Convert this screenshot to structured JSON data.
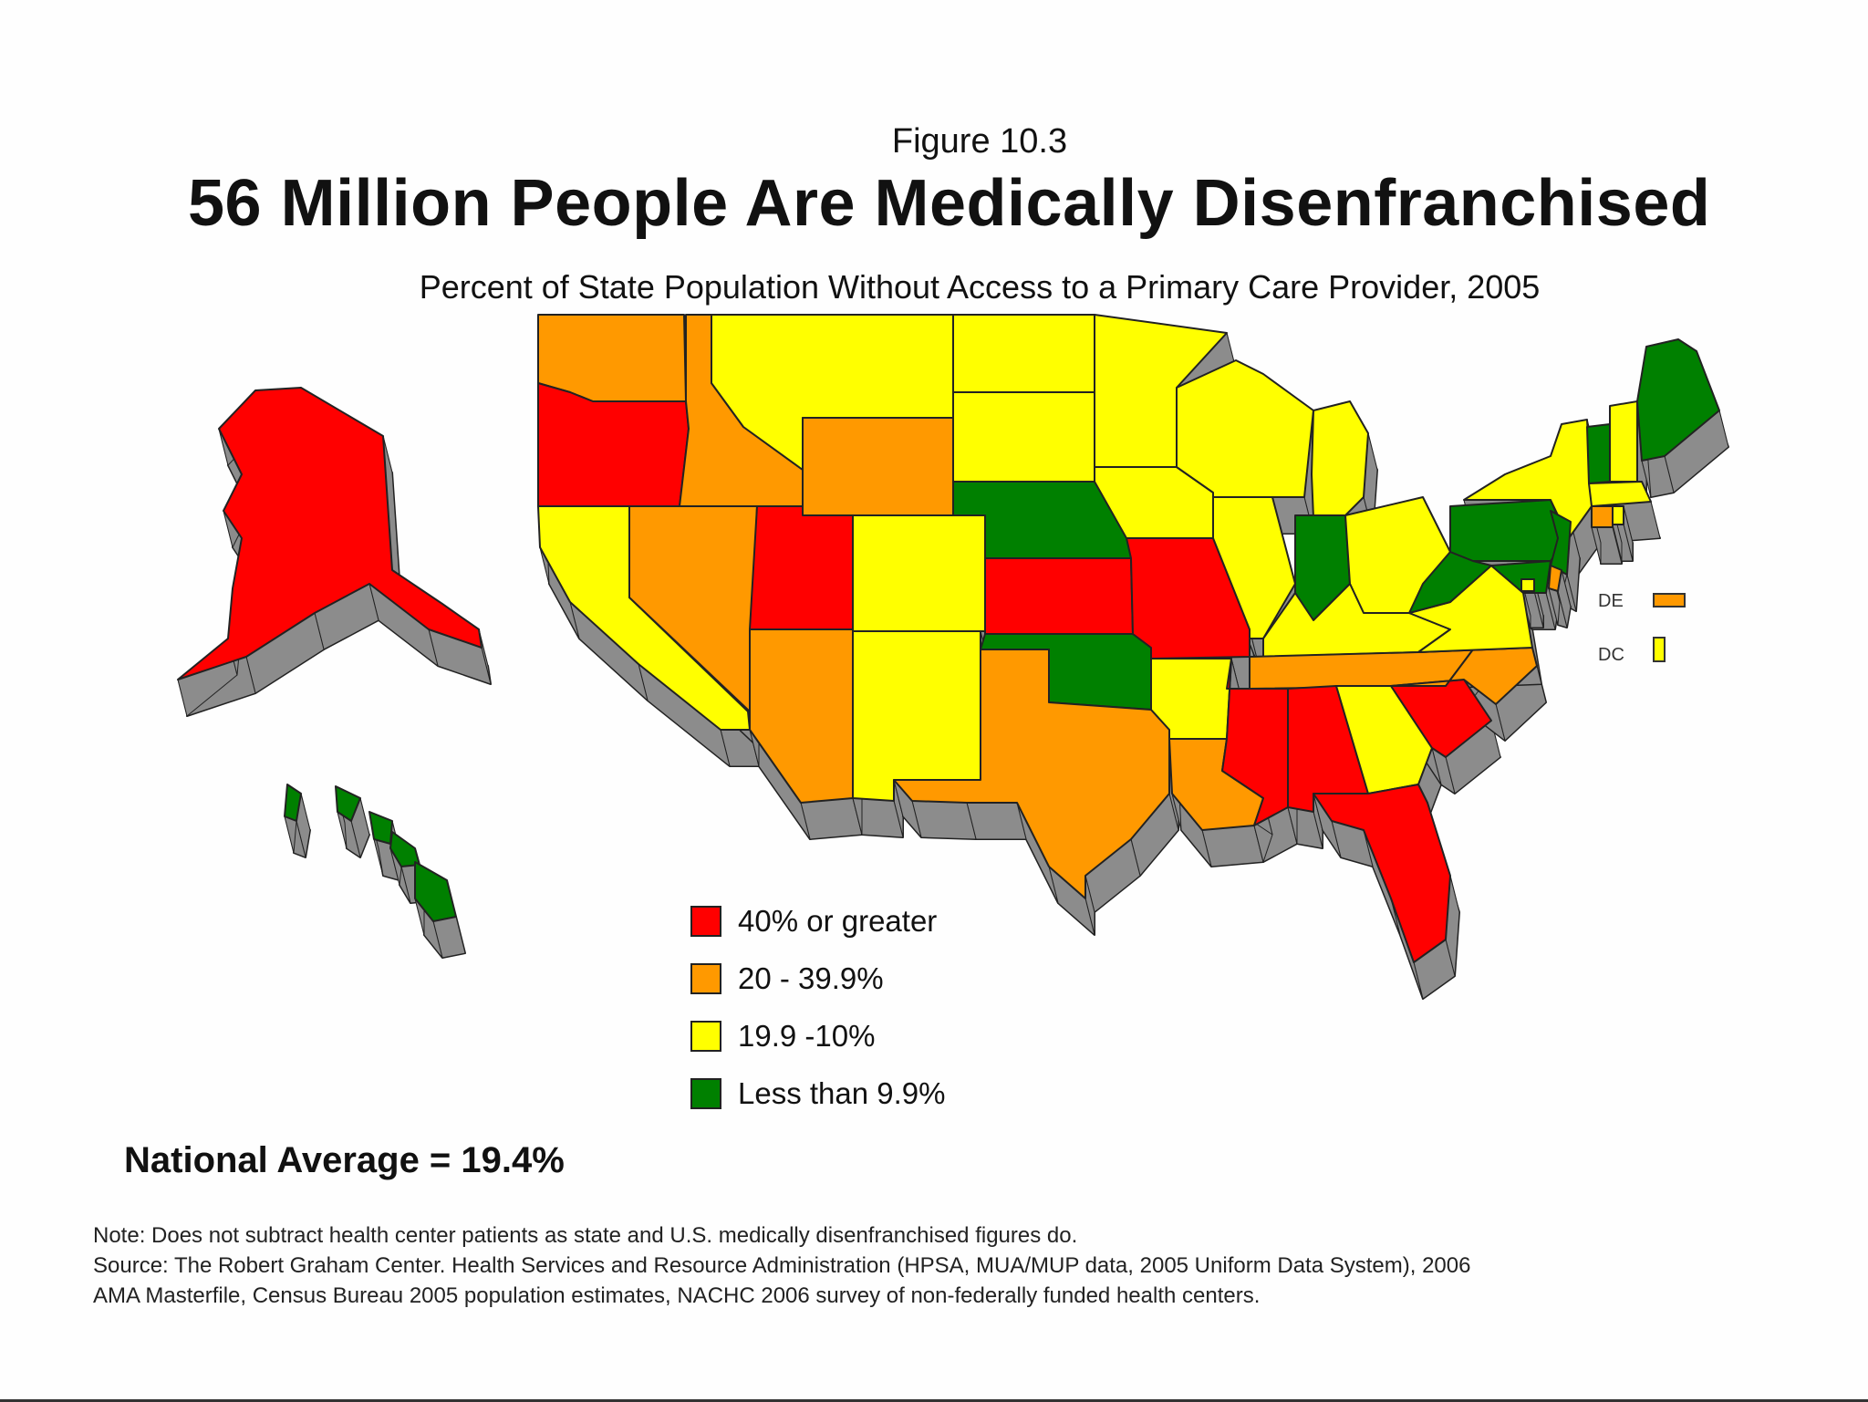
{
  "figure_label": "Figure 10.3",
  "title": "56 Million People Are Medically Disenfranchised",
  "subtitle": "Percent of State Population Without Access to a Primary Care Provider, 2005",
  "colors": {
    "ge40": "#ff0000",
    "r20_39": "#ff9900",
    "r10_19": "#ffff00",
    "lt10": "#008000",
    "shadow": "#8c8c8c",
    "outline": "#222222"
  },
  "legend": [
    {
      "key": "ge40",
      "label": "40% or greater"
    },
    {
      "key": "r20_39",
      "label": "20 - 39.9%"
    },
    {
      "key": "r10_19",
      "label": "19.9 -10%"
    },
    {
      "key": "lt10",
      "label": "Less than 9.9%"
    }
  ],
  "map_data": {
    "states": {
      "WA": "r20_39",
      "OR": "ge40",
      "CA": "r10_19",
      "NV": "r20_39",
      "ID": "r20_39",
      "MT": "r10_19",
      "WY": "r20_39",
      "UT": "ge40",
      "AZ": "r20_39",
      "CO": "r10_19",
      "NM": "r10_19",
      "ND": "r10_19",
      "SD": "r10_19",
      "NE": "lt10",
      "KS": "ge40",
      "OK": "lt10",
      "TX": "r20_39",
      "MN": "r10_19",
      "IA": "r10_19",
      "MO": "ge40",
      "AR": "r10_19",
      "LA": "r20_39",
      "WI": "r10_19",
      "IL": "r10_19",
      "MI": "r10_19",
      "IN": "lt10",
      "OH": "r10_19",
      "KY": "r10_19",
      "TN": "r20_39",
      "MS": "ge40",
      "AL": "ge40",
      "GA": "r10_19",
      "FL": "ge40",
      "SC": "ge40",
      "NC": "r20_39",
      "VA": "r10_19",
      "WV": "lt10",
      "PA": "lt10",
      "NY": "r10_19",
      "VT": "lt10",
      "NH": "r10_19",
      "ME": "lt10",
      "MA": "r10_19",
      "CT": "r20_39",
      "RI": "r10_19",
      "NJ": "lt10",
      "MD": "lt10",
      "DE": "r20_39",
      "DC": "r10_19",
      "AK": "ge40",
      "HI": "lt10"
    },
    "small_labels": [
      {
        "code": "DE",
        "label": "DE",
        "key": "r20_39"
      },
      {
        "code": "DC",
        "label": "DC",
        "key": "r10_19"
      }
    ]
  },
  "national_average": "National Average = 19.4%",
  "notes": [
    "Note: Does not subtract health center patients as state and U.S. medically disenfranchised figures do.",
    "Source: The Robert Graham Center. Health Services and Resource Administration (HPSA, MUA/MUP data, 2005 Uniform Data System), 2006",
    "AMA Masterfile, Census Bureau 2005 population estimates, NACHC 2006 survey of non-federally funded health centers."
  ]
}
